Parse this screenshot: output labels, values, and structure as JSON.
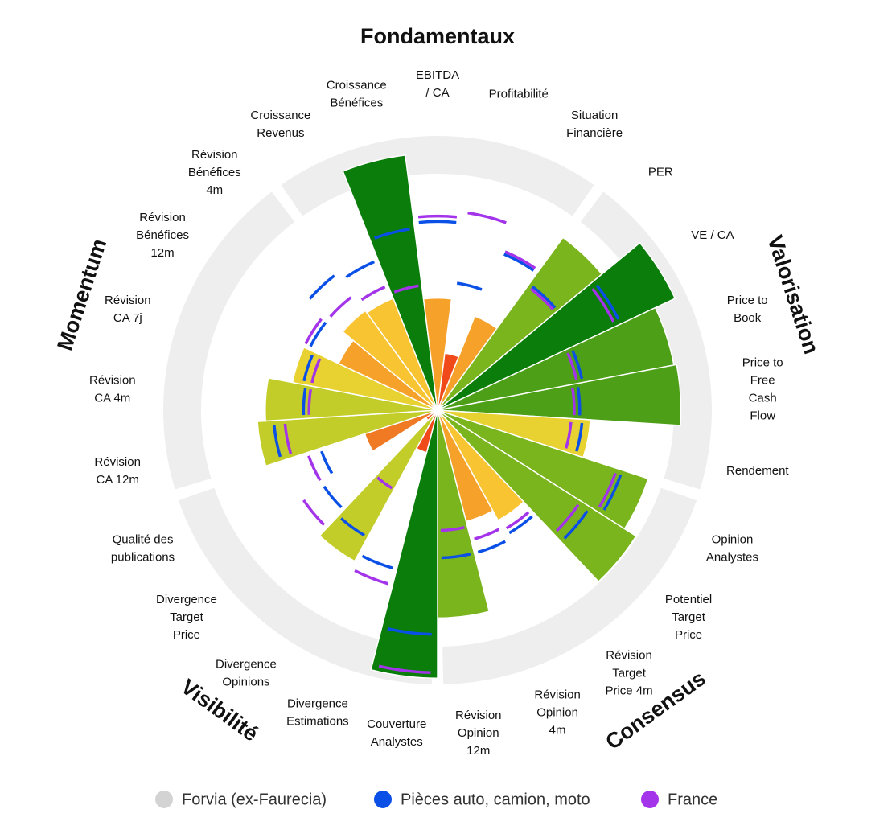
{
  "chart_data": {
    "type": "polar-bar",
    "groups": [
      "Fondamentaux",
      "Valorisation",
      "Consensus",
      "Visibilité",
      "Momentum"
    ],
    "categories": [
      "Croissance\nRevenus",
      "Croissance\nBénéfices",
      "EBITDA\n/ CA",
      "Profitabilité",
      "Situation\nFinancière",
      "PER",
      "VE / CA",
      "Price to\nBook",
      "Price to\nFree\nCash\nFlow",
      "Rendement",
      "Opinion\nAnalystes",
      "Potentiel\nTarget\nPrice",
      "Révision\nTarget\nPrice 4m",
      "Révision\nOpinion\n4m",
      "Révision\nOpinion\n12m",
      "Couverture\nAnalystes",
      "Divergence\nEstimations",
      "Divergence\nOpinions",
      "Divergence\nTarget\nPrice",
      "Qualité des\npublications",
      "Révision\nCA 12m",
      "Révision\nCA 4m",
      "Révision\nCA 7j",
      "Révision\nBénéfices\n12m",
      "Révision\nBénéfices\n4m"
    ],
    "ylim": [
      0,
      100
    ],
    "series": [
      {
        "name": "Forvia (ex-Faurecia)",
        "color": "#d3d3d3",
        "values": [
          44,
          94,
          41,
          21,
          37,
          78,
          96,
          88,
          89,
          56,
          81,
          86,
          46,
          42,
          76,
          98,
          16,
          63,
          5,
          28,
          66,
          63,
          54,
          40,
          45
        ],
        "colors": [
          "#f8c432",
          "#0a7d0a",
          "#f5a12a",
          "#f04a1a",
          "#f5a12a",
          "#7ab51d",
          "#0a7d0a",
          "#4c9f17",
          "#4c9f17",
          "#e8d232",
          "#7ab51d",
          "#7ab51d",
          "#f8c432",
          "#f5a12a",
          "#7ab51d",
          "#0a7d0a",
          "#f04a1a",
          "#c2cd2a",
          "#f04a1a",
          "#f07a24",
          "#c2cd2a",
          "#c2cd2a",
          "#e8d232",
          "#f5a12a",
          "#f8c432"
        ]
      },
      {
        "name": "Pièces auto, camion, moto",
        "color": "#0a50e6",
        "values": [
          59,
          67,
          69,
          47,
          62,
          57,
          74,
          54,
          52,
          53,
          71,
          66,
          52,
          54,
          54,
          82,
          60,
          53,
          50,
          45,
          60,
          49,
          50,
          52,
          62
        ]
      },
      {
        "name": "France",
        "color": "#a334ea",
        "values": [
          49,
          46,
          71,
          73,
          63,
          56,
          72,
          52,
          50,
          49,
          69,
          62,
          50,
          49,
          44,
          96,
          66,
          33,
          59,
          50,
          56,
          47,
          47,
          54,
          52
        ]
      }
    ]
  }
}
